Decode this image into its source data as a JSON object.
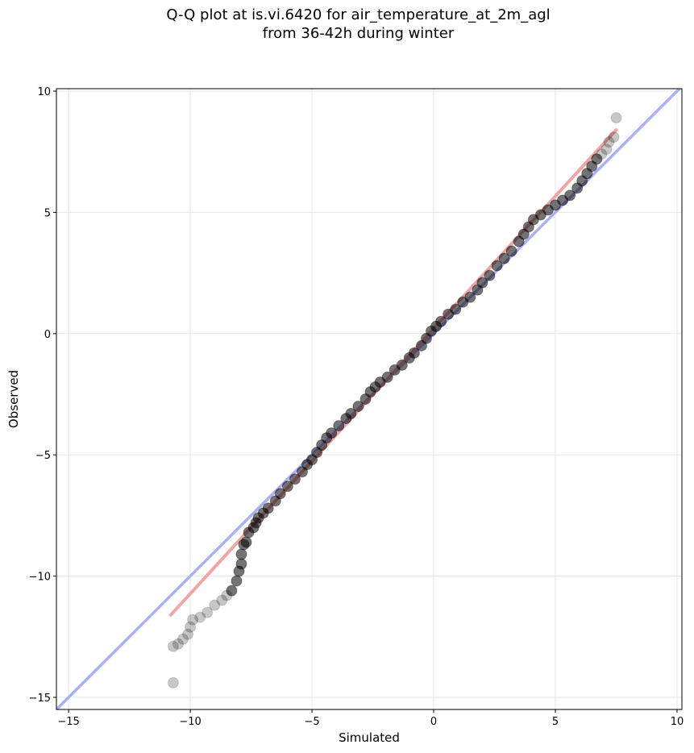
{
  "chart_data": {
    "type": "scatter",
    "title": "Q-Q plot at is.vi.6420 for air_temperature_at_2m_agl\nfrom 36-42h during winter",
    "xlabel": "Simulated",
    "ylabel": "Observed",
    "xlim": [
      -15.5,
      10.2
    ],
    "ylim": [
      -15.5,
      10.1
    ],
    "xticks": [
      -15,
      -10,
      -5,
      0,
      5,
      10
    ],
    "yticks": [
      -15,
      -10,
      -5,
      0,
      5,
      10
    ],
    "xtick_labels": [
      "−15",
      "−10",
      "−5",
      "0",
      "5",
      "10"
    ],
    "ytick_labels": [
      "−15",
      "−10",
      "−5",
      "0",
      "5",
      "10"
    ],
    "grid": true,
    "colors": {
      "points": "#000000",
      "identity_line": "#aab0f5",
      "fit_line": "#f0a5a5"
    },
    "reference_lines": [
      {
        "kind": "identity",
        "x": [
          -15.5,
          10.2
        ],
        "y": [
          -15.5,
          10.2
        ]
      },
      {
        "kind": "fit",
        "x": [
          -10.8,
          7.5
        ],
        "y": [
          -11.6,
          8.4
        ]
      }
    ],
    "quantile_points": [
      [
        -10.7,
        -14.4
      ],
      [
        -10.7,
        -12.9
      ],
      [
        -10.5,
        -12.8
      ],
      [
        -10.3,
        -12.6
      ],
      [
        -10.1,
        -12.4
      ],
      [
        -10.0,
        -12.1
      ],
      [
        -9.9,
        -11.8
      ],
      [
        -9.6,
        -11.7
      ],
      [
        -9.3,
        -11.5
      ],
      [
        -9.0,
        -11.2
      ],
      [
        -8.7,
        -11.0
      ],
      [
        -8.5,
        -10.8
      ],
      [
        -8.3,
        -10.6
      ],
      [
        -8.1,
        -10.2
      ],
      [
        -8.0,
        -9.8
      ],
      [
        -7.9,
        -9.5
      ],
      [
        -7.9,
        -9.1
      ],
      [
        -7.8,
        -8.7
      ],
      [
        -7.7,
        -8.6
      ],
      [
        -7.6,
        -8.2
      ],
      [
        -7.4,
        -8.0
      ],
      [
        -7.3,
        -7.8
      ],
      [
        -7.2,
        -7.6
      ],
      [
        -7.0,
        -7.4
      ],
      [
        -6.8,
        -7.2
      ],
      [
        -6.5,
        -6.9
      ],
      [
        -6.3,
        -6.6
      ],
      [
        -6.0,
        -6.3
      ],
      [
        -5.7,
        -6.0
      ],
      [
        -5.4,
        -5.7
      ],
      [
        -5.2,
        -5.4
      ],
      [
        -5.0,
        -5.2
      ],
      [
        -4.8,
        -4.9
      ],
      [
        -4.6,
        -4.6
      ],
      [
        -4.4,
        -4.3
      ],
      [
        -4.2,
        -4.1
      ],
      [
        -3.9,
        -3.8
      ],
      [
        -3.6,
        -3.5
      ],
      [
        -3.4,
        -3.3
      ],
      [
        -3.1,
        -3.0
      ],
      [
        -2.8,
        -2.7
      ],
      [
        -2.6,
        -2.4
      ],
      [
        -2.4,
        -2.2
      ],
      [
        -2.2,
        -2.0
      ],
      [
        -1.9,
        -1.8
      ],
      [
        -1.6,
        -1.5
      ],
      [
        -1.3,
        -1.3
      ],
      [
        -1.0,
        -1.0
      ],
      [
        -0.8,
        -0.8
      ],
      [
        -0.5,
        -0.5
      ],
      [
        -0.3,
        -0.2
      ],
      [
        -0.1,
        0.1
      ],
      [
        0.1,
        0.3
      ],
      [
        0.3,
        0.5
      ],
      [
        0.6,
        0.8
      ],
      [
        0.9,
        1.0
      ],
      [
        1.2,
        1.3
      ],
      [
        1.5,
        1.5
      ],
      [
        1.8,
        1.8
      ],
      [
        2.0,
        2.1
      ],
      [
        2.3,
        2.4
      ],
      [
        2.6,
        2.8
      ],
      [
        2.9,
        3.1
      ],
      [
        3.2,
        3.4
      ],
      [
        3.5,
        3.8
      ],
      [
        3.7,
        4.1
      ],
      [
        3.9,
        4.4
      ],
      [
        4.1,
        4.7
      ],
      [
        4.4,
        4.9
      ],
      [
        4.7,
        5.1
      ],
      [
        5.0,
        5.3
      ],
      [
        5.3,
        5.5
      ],
      [
        5.6,
        5.7
      ],
      [
        5.9,
        6.0
      ],
      [
        6.1,
        6.3
      ],
      [
        6.3,
        6.6
      ],
      [
        6.5,
        6.9
      ],
      [
        6.7,
        7.2
      ],
      [
        6.9,
        7.4
      ],
      [
        7.1,
        7.6
      ],
      [
        7.2,
        7.9
      ],
      [
        7.4,
        8.1
      ],
      [
        7.5,
        8.9
      ]
    ]
  }
}
